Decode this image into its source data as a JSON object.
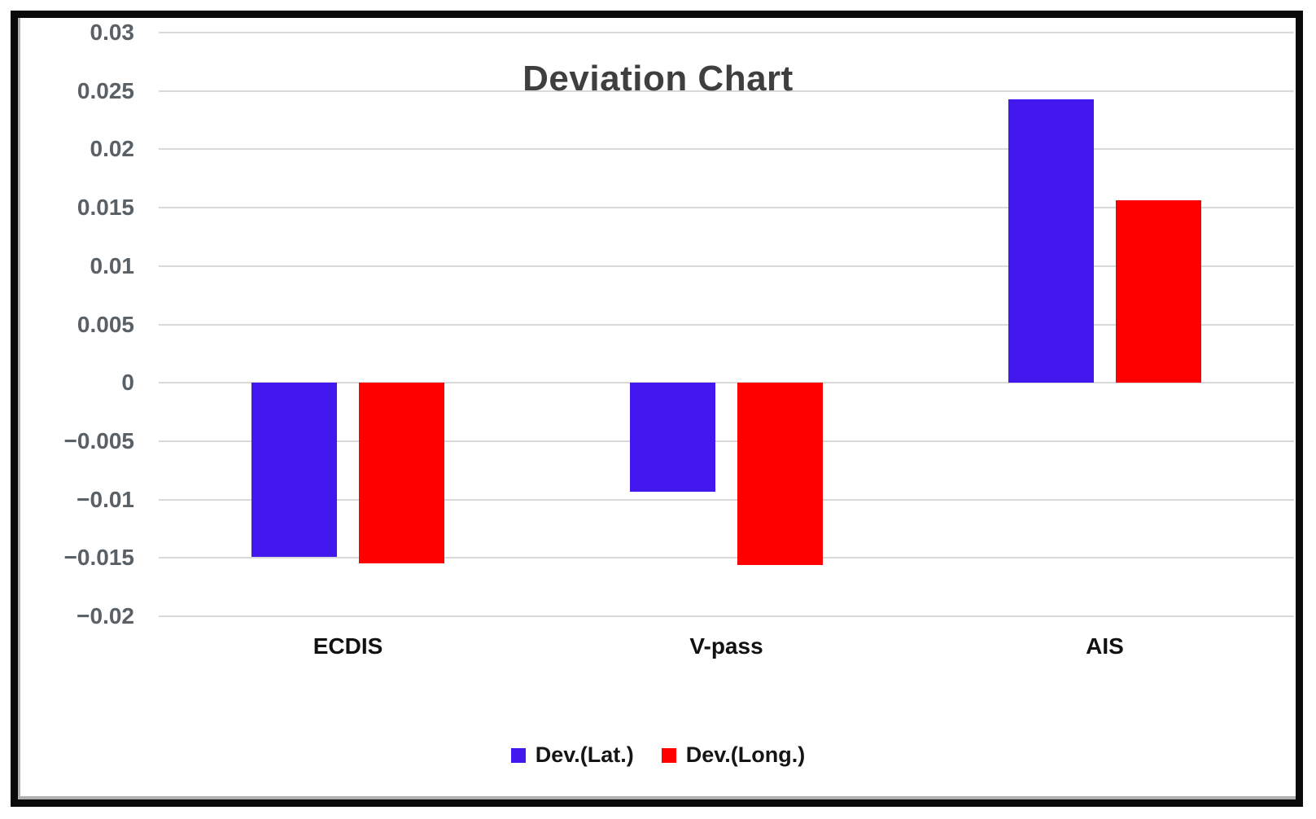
{
  "chart_data": {
    "type": "bar",
    "title": "Deviation Chart",
    "categories": [
      "ECDIS",
      "V-pass",
      "AIS"
    ],
    "series": [
      {
        "name": "Dev.(Lat.)",
        "color": "#4318ee",
        "values": [
          -0.0149,
          -0.0093,
          0.0243
        ]
      },
      {
        "name": "Dev.(Long.)",
        "color": "#fe0000",
        "values": [
          -0.0155,
          -0.0156,
          0.0156
        ]
      }
    ],
    "ylim": [
      -0.02,
      0.03
    ],
    "ytick_step": 0.005,
    "yticks": [
      0.03,
      0.025,
      0.02,
      0.015,
      0.01,
      0.005,
      0,
      -0.005,
      -0.01,
      -0.015,
      -0.02
    ],
    "ytick_labels": [
      "0.03",
      "0.025",
      "0.02",
      "0.015",
      "0.01",
      "0.005",
      "0",
      "−0.005",
      "−0.01",
      "−0.015",
      "−0.02"
    ],
    "grid": true,
    "legend_position": "bottom",
    "xlabel": "",
    "ylabel": ""
  }
}
